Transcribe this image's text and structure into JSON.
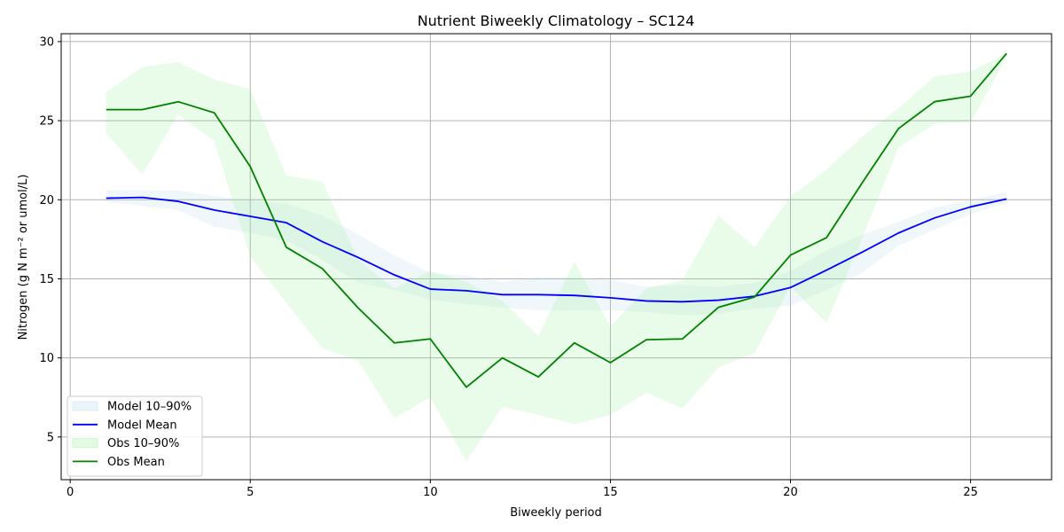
{
  "chart_data": {
    "type": "line",
    "title": "Nutrient Biweekly Climatology – SC124",
    "xlabel": "Biweekly period",
    "ylabel": "Nitrogen (g N m⁻² or umol/L)",
    "xlim": [
      -0.25,
      27.25
    ],
    "ylim": [
      2.3,
      30.5
    ],
    "xticks": [
      0,
      5,
      10,
      15,
      20,
      25
    ],
    "yticks": [
      5,
      10,
      15,
      20,
      25,
      30
    ],
    "grid": true,
    "legend_position": "lower-left",
    "x": [
      1,
      2,
      3,
      4,
      5,
      6,
      7,
      8,
      9,
      10,
      11,
      12,
      13,
      14,
      15,
      16,
      17,
      18,
      19,
      20,
      21,
      22,
      23,
      24,
      25,
      26
    ],
    "series": [
      {
        "name": "Model Mean",
        "kind": "line",
        "color": "#0000ff",
        "values": [
          20.1,
          20.15,
          19.9,
          19.35,
          18.95,
          18.55,
          17.35,
          16.35,
          15.25,
          14.35,
          14.25,
          14.0,
          14.0,
          13.95,
          13.8,
          13.6,
          13.55,
          13.65,
          13.9,
          14.45,
          15.55,
          16.7,
          17.9,
          18.85,
          19.55,
          20.05
        ]
      },
      {
        "name": "Model 10–90%",
        "kind": "band",
        "color": "#add8e6",
        "opacity": 0.2,
        "lower": [
          19.9,
          19.6,
          19.35,
          18.3,
          17.9,
          17.45,
          16.2,
          14.75,
          14.3,
          13.7,
          13.4,
          13.2,
          13.0,
          13.0,
          13.0,
          12.9,
          12.7,
          12.8,
          13.1,
          13.3,
          14.3,
          15.4,
          17.1,
          18.1,
          19.1,
          19.8
        ],
        "upper": [
          20.6,
          20.6,
          20.6,
          20.25,
          19.95,
          19.75,
          19.0,
          17.8,
          16.5,
          15.35,
          15.2,
          14.8,
          15.1,
          15.1,
          14.9,
          14.5,
          14.6,
          14.5,
          14.75,
          15.5,
          16.8,
          17.8,
          18.6,
          19.5,
          20.0,
          20.5
        ]
      },
      {
        "name": "Obs Mean",
        "kind": "line",
        "color": "#008000",
        "values": [
          25.7,
          25.7,
          26.2,
          25.5,
          22.1,
          17.0,
          15.65,
          13.15,
          10.95,
          11.2,
          8.15,
          10.0,
          8.8,
          10.95,
          9.7,
          11.15,
          11.2,
          13.2,
          13.85,
          16.5,
          17.6,
          21.1,
          24.5,
          26.2,
          26.55,
          29.25
        ]
      },
      {
        "name": "Obs 10–90%",
        "kind": "band",
        "color": "#90ee90",
        "opacity": 0.2,
        "lower": [
          24.2,
          21.6,
          25.4,
          23.7,
          16.4,
          13.5,
          10.6,
          9.8,
          6.2,
          7.5,
          3.45,
          6.9,
          6.4,
          5.8,
          6.4,
          7.8,
          6.8,
          9.4,
          10.3,
          14.5,
          12.2,
          17.6,
          23.3,
          24.8,
          24.9,
          29.0
        ],
        "upper": [
          26.8,
          28.4,
          28.7,
          27.6,
          27.0,
          21.55,
          21.15,
          16.2,
          14.4,
          15.5,
          14.8,
          13.6,
          11.4,
          16.1,
          12.0,
          14.4,
          14.9,
          19.0,
          17.0,
          20.2,
          21.9,
          24.0,
          25.8,
          27.8,
          28.1,
          29.3
        ]
      }
    ],
    "legend": [
      {
        "label": "Model 10–90%",
        "kind": "band",
        "color": "#add8e6"
      },
      {
        "label": "Model Mean",
        "kind": "line",
        "color": "#0000ff"
      },
      {
        "label": "Obs 10–90%",
        "kind": "band",
        "color": "#90ee90"
      },
      {
        "label": "Obs Mean",
        "kind": "line",
        "color": "#008000"
      }
    ]
  }
}
